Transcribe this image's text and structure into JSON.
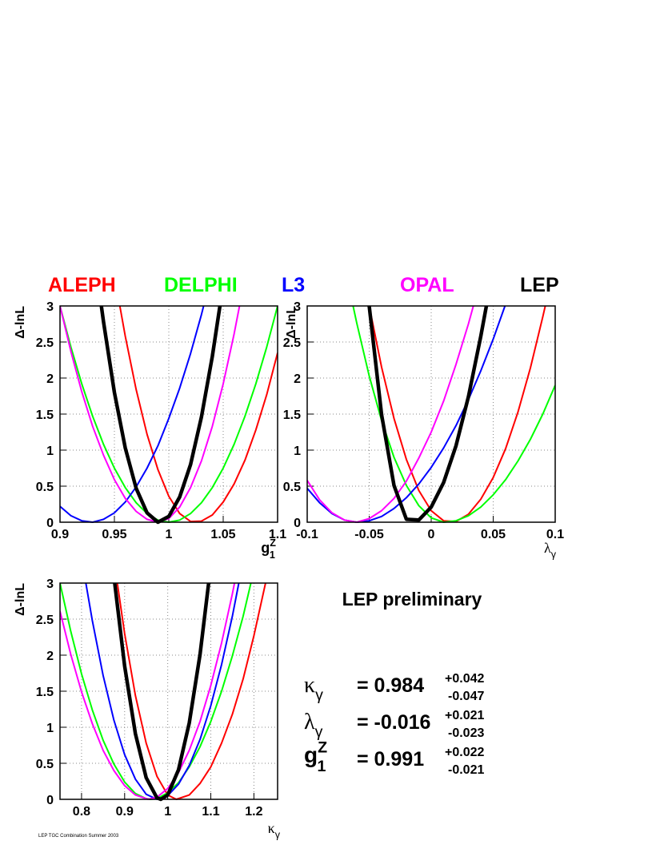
{
  "chart_data": [
    {
      "type": "line",
      "y_label": "Δ-lnL",
      "x_label": {
        "text": "g",
        "sub": "1",
        "sup": "Z"
      },
      "xlim": [
        0.9,
        1.1
      ],
      "ylim": [
        0,
        3
      ],
      "xticks": [
        0.9,
        0.95,
        1,
        1.05,
        1.1
      ],
      "yticks": [
        0,
        0.5,
        1,
        1.5,
        2,
        2.5,
        3
      ],
      "grid": true,
      "series": [
        {
          "name": "ALEPH",
          "color": "#ff0000",
          "x": [
            0.955,
            0.96,
            0.97,
            0.98,
            0.99,
            1.0,
            1.01,
            1.02,
            1.03,
            1.04,
            1.05,
            1.06,
            1.07,
            1.08,
            1.09,
            1.1
          ],
          "values": [
            3.0,
            2.58,
            1.84,
            1.22,
            0.73,
            0.36,
            0.12,
            0.01,
            0.015,
            0.1,
            0.28,
            0.53,
            0.86,
            1.28,
            1.77,
            2.35
          ]
        },
        {
          "name": "DELPHI",
          "color": "#00ff00",
          "x": [
            0.9,
            0.91,
            0.92,
            0.93,
            0.94,
            0.95,
            0.96,
            0.97,
            0.98,
            0.99,
            1.0,
            1.01,
            1.02,
            1.03,
            1.04,
            1.05,
            1.06,
            1.07,
            1.08,
            1.09,
            1.1
          ],
          "values": [
            3.0,
            2.43,
            1.92,
            1.47,
            1.08,
            0.75,
            0.48,
            0.27,
            0.12,
            0.03,
            0,
            0.03,
            0.12,
            0.27,
            0.48,
            0.75,
            1.08,
            1.47,
            1.92,
            2.43,
            3.0
          ]
        },
        {
          "name": "L3",
          "color": "#0000ff",
          "x": [
            0.9,
            0.91,
            0.92,
            0.93,
            0.94,
            0.95,
            0.96,
            0.97,
            0.98,
            0.99,
            1.0,
            1.01,
            1.02,
            1.03,
            1.032
          ],
          "values": [
            0.22,
            0.09,
            0.02,
            0,
            0.04,
            0.13,
            0.28,
            0.49,
            0.75,
            1.06,
            1.44,
            1.86,
            2.34,
            2.88,
            3.0
          ]
        },
        {
          "name": "OPAL",
          "color": "#ff00ff",
          "x": [
            0.9,
            0.91,
            0.92,
            0.93,
            0.94,
            0.95,
            0.96,
            0.97,
            0.98,
            0.99,
            1.0,
            1.01,
            1.02,
            1.03,
            1.04,
            1.05,
            1.06,
            1.065
          ],
          "values": [
            3.0,
            2.37,
            1.81,
            1.33,
            0.93,
            0.59,
            0.33,
            0.15,
            0.04,
            0,
            0.05,
            0.21,
            0.48,
            0.85,
            1.33,
            1.92,
            2.61,
            3.0
          ]
        },
        {
          "name": "LEP",
          "color": "#000000",
          "x": [
            0.938,
            0.94,
            0.95,
            0.96,
            0.97,
            0.98,
            0.99,
            1.0,
            1.01,
            1.02,
            1.03,
            1.04,
            1.047
          ],
          "values": [
            3.0,
            2.78,
            1.8,
            1.03,
            0.47,
            0.13,
            0,
            0.08,
            0.35,
            0.8,
            1.46,
            2.3,
            3.0
          ]
        }
      ]
    },
    {
      "type": "line",
      "y_label": "Δ-lnL",
      "x_label": {
        "text": "λ",
        "sub": "γ"
      },
      "xlim": [
        -0.1,
        0.1
      ],
      "ylim": [
        0,
        3
      ],
      "xticks": [
        -0.1,
        -0.05,
        0,
        0.05,
        0.1
      ],
      "yticks": [
        0,
        0.5,
        1,
        1.5,
        2,
        2.5,
        3
      ],
      "grid": true,
      "series": [
        {
          "color": "#ff0000",
          "x": [
            -0.05,
            -0.04,
            -0.03,
            -0.02,
            -0.01,
            0,
            0.01,
            0.02,
            0.03,
            0.04,
            0.05,
            0.06,
            0.07,
            0.08,
            0.09,
            0.092
          ],
          "values": [
            3.0,
            2.15,
            1.44,
            0.87,
            0.44,
            0.16,
            0.02,
            0.01,
            0.11,
            0.32,
            0.62,
            1.02,
            1.53,
            2.14,
            2.85,
            3.0
          ]
        },
        {
          "color": "#00ff00",
          "x": [
            -0.063,
            -0.06,
            -0.05,
            -0.04,
            -0.03,
            -0.02,
            -0.01,
            0,
            0.01,
            0.02,
            0.03,
            0.04,
            0.05,
            0.06,
            0.07,
            0.08,
            0.09,
            0.1
          ],
          "values": [
            3.0,
            2.76,
            2.03,
            1.41,
            0.9,
            0.51,
            0.23,
            0.06,
            0,
            0.02,
            0.09,
            0.21,
            0.38,
            0.59,
            0.85,
            1.15,
            1.5,
            1.9
          ]
        },
        {
          "color": "#0000ff",
          "x": [
            -0.1,
            -0.09,
            -0.08,
            -0.07,
            -0.06,
            -0.05,
            -0.04,
            -0.03,
            -0.02,
            -0.01,
            0,
            0.01,
            0.02,
            0.03,
            0.04,
            0.05,
            0.0595
          ],
          "values": [
            0.47,
            0.27,
            0.12,
            0.03,
            0,
            0.02,
            0.08,
            0.19,
            0.34,
            0.53,
            0.76,
            1.03,
            1.34,
            1.7,
            2.1,
            2.54,
            3.0
          ]
        },
        {
          "color": "#ff00ff",
          "x": [
            -0.1,
            -0.09,
            -0.08,
            -0.07,
            -0.06,
            -0.05,
            -0.04,
            -0.03,
            -0.02,
            -0.01,
            0,
            0.01,
            0.02,
            0.03,
            0.034
          ],
          "values": [
            0.58,
            0.31,
            0.13,
            0.03,
            0,
            0.05,
            0.16,
            0.33,
            0.57,
            0.89,
            1.25,
            1.68,
            2.19,
            2.75,
            3.0
          ]
        },
        {
          "color": "#000000",
          "x": [
            -0.05,
            -0.04,
            -0.03,
            -0.02,
            -0.01,
            0,
            0.01,
            0.02,
            0.03,
            0.04,
            0.0445
          ],
          "values": [
            3.0,
            1.49,
            0.51,
            0.04,
            0.03,
            0.21,
            0.55,
            1.06,
            1.74,
            2.58,
            3.0
          ]
        }
      ]
    },
    {
      "type": "line",
      "y_label": "Δ-lnL",
      "x_label": {
        "text": "κ",
        "sub": "γ"
      },
      "xlim": [
        0.75,
        1.255
      ],
      "ylim": [
        0,
        3
      ],
      "xticks": [
        0.8,
        0.9,
        1,
        1.1,
        1.2
      ],
      "yticks": [
        0,
        0.5,
        1,
        1.5,
        2,
        2.5,
        3
      ],
      "grid": true,
      "series": [
        {
          "color": "#ff0000",
          "x": [
            0.883,
            0.9,
            0.925,
            0.95,
            0.975,
            1.0,
            1.02,
            1.05,
            1.075,
            1.1,
            1.125,
            1.15,
            1.175,
            1.2,
            1.227
          ],
          "values": [
            3.0,
            2.3,
            1.44,
            0.78,
            0.32,
            0.06,
            0,
            0.06,
            0.22,
            0.45,
            0.78,
            1.18,
            1.67,
            2.27,
            3.0
          ]
        },
        {
          "color": "#00ff00",
          "x": [
            0.75,
            0.775,
            0.8,
            0.825,
            0.85,
            0.875,
            0.9,
            0.925,
            0.95,
            0.96,
            0.975,
            1.0,
            1.025,
            1.05,
            1.075,
            1.1,
            1.125,
            1.15,
            1.175,
            1.193
          ],
          "values": [
            3.0,
            2.33,
            1.74,
            1.24,
            0.82,
            0.49,
            0.24,
            0.08,
            0.01,
            0,
            0.01,
            0.09,
            0.23,
            0.45,
            0.73,
            1.08,
            1.5,
            1.99,
            2.54,
            3.0
          ]
        },
        {
          "color": "#0000ff",
          "x": [
            0.81,
            0.825,
            0.85,
            0.875,
            0.9,
            0.925,
            0.95,
            0.975,
            1.0,
            1.025,
            1.05,
            1.075,
            1.1,
            1.125,
            1.15,
            1.165
          ],
          "values": [
            3.0,
            2.48,
            1.72,
            1.1,
            0.62,
            0.28,
            0.07,
            0,
            0.05,
            0.21,
            0.47,
            0.83,
            1.3,
            1.87,
            2.54,
            3.0
          ]
        },
        {
          "color": "#ff00ff",
          "x": [
            0.75,
            0.775,
            0.8,
            0.825,
            0.85,
            0.875,
            0.9,
            0.925,
            0.955,
            0.975,
            1.0,
            1.025,
            1.05,
            1.075,
            1.1,
            1.125,
            1.15,
            1.155
          ],
          "values": [
            2.61,
            2.01,
            1.49,
            1.05,
            0.68,
            0.4,
            0.19,
            0.06,
            0,
            0.03,
            0.15,
            0.37,
            0.68,
            1.08,
            1.58,
            2.17,
            2.85,
            3.0
          ]
        },
        {
          "color": "#000000",
          "x": [
            0.877,
            0.9,
            0.925,
            0.95,
            0.975,
            0.984,
            1.0,
            1.025,
            1.05,
            1.075,
            1.095
          ],
          "values": [
            3.0,
            1.85,
            0.91,
            0.3,
            0.02,
            0,
            0.06,
            0.41,
            1.06,
            2.01,
            3.0
          ]
        }
      ]
    }
  ],
  "results": {
    "title": "LEP preliminary",
    "rows": [
      {
        "param": {
          "text": "κ",
          "sub": "γ"
        },
        "value": "= 0.984",
        "plus": "+0.042",
        "minus": "-0.047"
      },
      {
        "param": {
          "text": "λ",
          "sub": "γ"
        },
        "value": "= -0.016",
        "plus": "+0.021",
        "minus": "-0.023"
      },
      {
        "param": {
          "text": "g",
          "sub": "1",
          "sup": "Z"
        },
        "value": "= 0.991",
        "plus": "+0.022",
        "minus": "-0.021"
      }
    ]
  },
  "footnote": "LEP TGC Combination Summer 2003"
}
